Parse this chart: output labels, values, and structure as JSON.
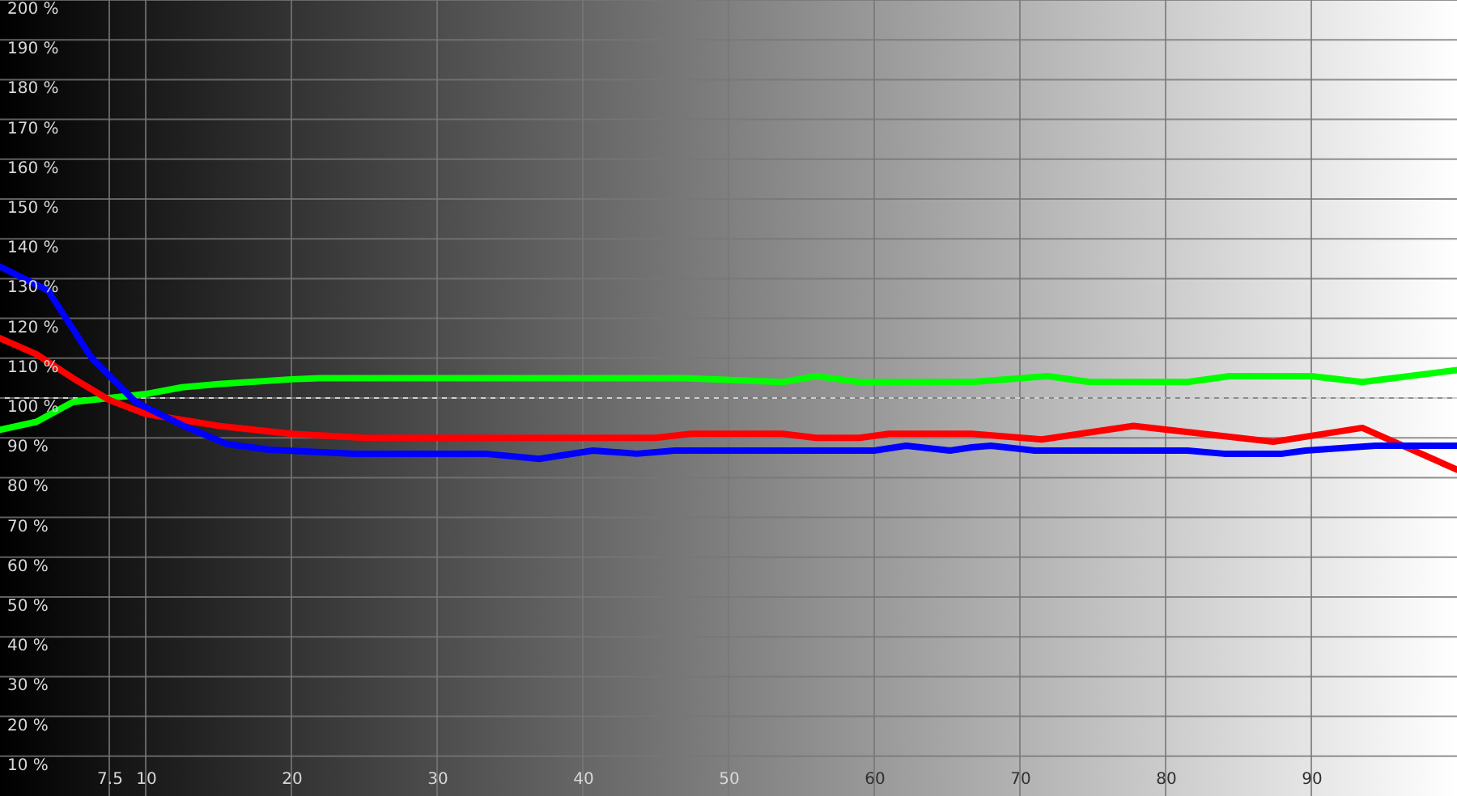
{
  "chart_data": {
    "type": "line",
    "xlim": [
      0,
      100
    ],
    "ylim": [
      0,
      200
    ],
    "xticks": [
      7.5,
      10,
      20,
      30,
      40,
      50,
      60,
      70,
      80,
      90
    ],
    "yticks": [
      {
        "value": 10,
        "label": "10 %"
      },
      {
        "value": 20,
        "label": "20 %"
      },
      {
        "value": 30,
        "label": "30 %"
      },
      {
        "value": 40,
        "label": "40 %"
      },
      {
        "value": 50,
        "label": "50 %"
      },
      {
        "value": 60,
        "label": "60 %"
      },
      {
        "value": 70,
        "label": "70 %"
      },
      {
        "value": 80,
        "label": "80 %"
      },
      {
        "value": 90,
        "label": "90 %"
      },
      {
        "value": 100,
        "label": "100 %"
      },
      {
        "value": 110,
        "label": "110 %"
      },
      {
        "value": 120,
        "label": "120 %"
      },
      {
        "value": 130,
        "label": "130 %"
      },
      {
        "value": 140,
        "label": "140 %"
      },
      {
        "value": 150,
        "label": "150 %"
      },
      {
        "value": 160,
        "label": "160 %"
      },
      {
        "value": 170,
        "label": "170 %"
      },
      {
        "value": 180,
        "label": "180 %"
      },
      {
        "value": 190,
        "label": "190 %"
      },
      {
        "value": 200,
        "label": "200 %"
      }
    ],
    "grid": true,
    "ref_lines": [
      {
        "axis": "y",
        "value": 100,
        "color": "#d0d0d0",
        "line_style": "dashed"
      }
    ],
    "series": [
      {
        "color": "#00ff00",
        "x": [
          0,
          2.5,
          5,
          7.5,
          10,
          12.5,
          15,
          20,
          22,
          33,
          47,
          53.7,
          56,
          59,
          66.7,
          71.9,
          74.8,
          81.5,
          84.4,
          90,
          93.5,
          100
        ],
        "values": [
          92,
          94,
          99,
          100,
          101,
          102.7,
          103.5,
          104.7,
          105,
          105,
          105,
          104,
          105.5,
          104,
          104,
          105.5,
          104,
          104,
          105.5,
          105.5,
          104,
          107
        ]
      },
      {
        "color": "#ff0000",
        "x": [
          0,
          2.5,
          5,
          7.5,
          10,
          15,
          20,
          25,
          33,
          45,
          47.4,
          53.7,
          56,
          59,
          61,
          66.7,
          71.5,
          77.8,
          87.4,
          93.5,
          100
        ],
        "values": [
          115,
          111,
          105,
          99.5,
          96,
          93,
          91,
          90,
          90,
          90,
          91,
          91,
          90,
          90,
          91,
          91,
          89.6,
          93,
          89,
          92.5,
          82
        ]
      },
      {
        "color": "#0000ff",
        "x": [
          0,
          3.3,
          6.3,
          9.3,
          12.6,
          15.6,
          18.5,
          24.4,
          33.3,
          37,
          40.7,
          43.7,
          46.3,
          60,
          62.2,
          65.2,
          66.7,
          68,
          71,
          81.5,
          84,
          88,
          89.6,
          94.4,
          100
        ],
        "values": [
          133,
          127,
          110,
          99,
          93,
          88.4,
          87,
          86,
          86,
          84.7,
          86.8,
          86,
          86.8,
          86.8,
          88,
          86.8,
          87.6,
          88,
          86.8,
          86.8,
          86,
          86,
          86.8,
          88,
          88
        ]
      }
    ]
  }
}
